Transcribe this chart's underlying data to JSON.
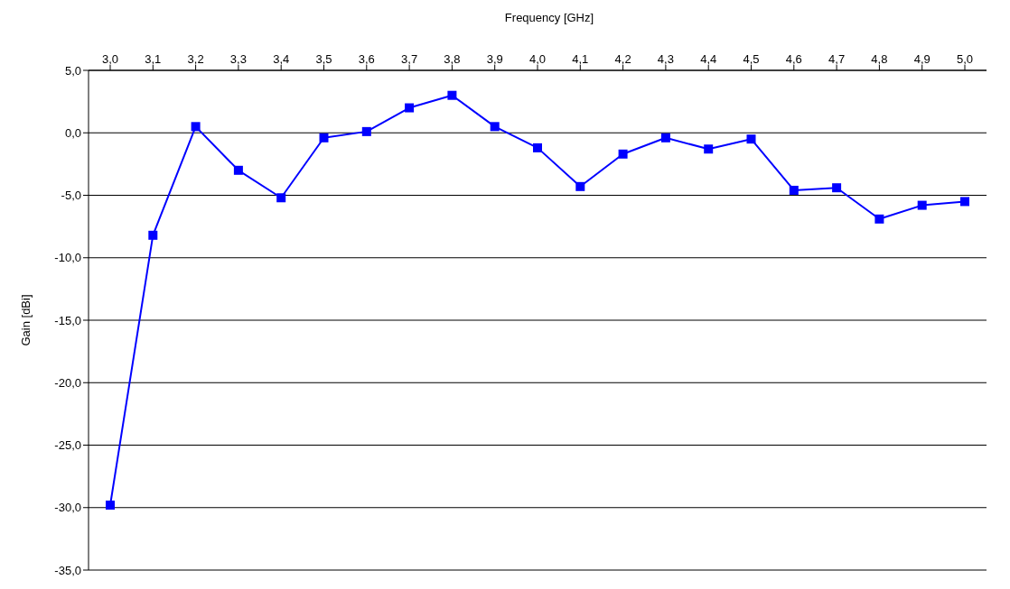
{
  "chart_data": {
    "type": "line",
    "xlabel": "Frequency [GHz]",
    "ylabel": "Gain [dBi]",
    "categories": [
      "3,0",
      "3,1",
      "3,2",
      "3,3",
      "3,4",
      "3,5",
      "3,6",
      "3,7",
      "3,8",
      "3,9",
      "4,0",
      "4,1",
      "4,2",
      "4,3",
      "4,4",
      "4,5",
      "4,6",
      "4,7",
      "4,8",
      "4,9",
      "5,0"
    ],
    "series": [
      {
        "color": "#0000ff",
        "values": [
          -29.8,
          -8.2,
          0.5,
          -3.0,
          -5.2,
          -0.4,
          0.1,
          2.0,
          3.0,
          0.5,
          -1.2,
          -4.3,
          -1.7,
          -0.4,
          -1.3,
          -0.5,
          -4.6,
          -4.4,
          -6.9,
          -5.8,
          -5.5
        ]
      }
    ],
    "ylim": [
      -35,
      5
    ],
    "yticks": [
      {
        "value": -35,
        "label": "-35,0"
      },
      {
        "value": -30,
        "label": "-30,0"
      },
      {
        "value": -25,
        "label": "-25,0"
      },
      {
        "value": -20,
        "label": "-20,0"
      },
      {
        "value": -15,
        "label": "-15,0"
      },
      {
        "value": -10,
        "label": "-10,0"
      },
      {
        "value": -5,
        "label": "-5,0"
      },
      {
        "value": 0,
        "label": "0,0"
      },
      {
        "value": 5,
        "label": "5,0"
      }
    ],
    "grid": "y",
    "marker": "square",
    "legend": false,
    "line_style": "solid"
  }
}
